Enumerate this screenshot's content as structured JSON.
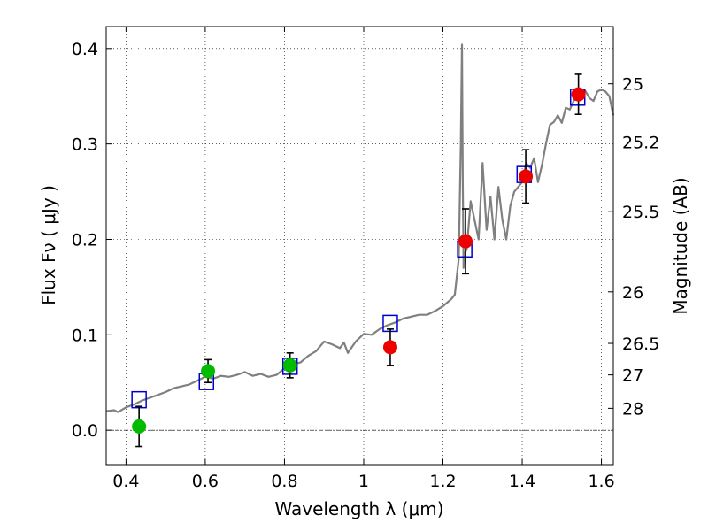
{
  "chart_data": {
    "type": "scatter",
    "title": "",
    "xlabel": "Wavelength  λ (μm)",
    "ylabel": "Flux  Fν  ( μJy )",
    "ylabel_right": "Magnitude (AB)",
    "xlim": [
      0.35,
      1.63
    ],
    "ylim": [
      -0.036,
      0.423
    ],
    "xticks": [
      0.4,
      0.6,
      0.8,
      1.0,
      1.2,
      1.4,
      1.6
    ],
    "xtick_labels": [
      "0.4",
      "0.6",
      "0.8",
      "1",
      "1.2",
      "1.4",
      "1.6"
    ],
    "yticks": [
      0.0,
      0.1,
      0.2,
      0.3,
      0.4
    ],
    "ytick_labels": [
      "0.0",
      "0.1",
      "0.2",
      "0.3",
      "0.4"
    ],
    "right_ticks": [
      {
        "label": "25",
        "flux": 0.363
      },
      {
        "label": "25.2",
        "flux": 0.302
      },
      {
        "label": "25.5",
        "flux": 0.229
      },
      {
        "label": "26",
        "flux": 0.145
      },
      {
        "label": "26.5",
        "flux": 0.091
      },
      {
        "label": "27",
        "flux": 0.058
      },
      {
        "label": "28",
        "flux": 0.023
      }
    ],
    "grid": true,
    "zero_line": true,
    "colors": {
      "model": "#808080",
      "model_points": "#0000cc",
      "green": "#00bb00",
      "red": "#ee0000",
      "errorbar": "#000000"
    },
    "series": [
      {
        "name": "model_spectrum",
        "style": "line",
        "x": [
          0.35,
          0.37,
          0.38,
          0.4,
          0.42,
          0.44,
          0.46,
          0.48,
          0.5,
          0.52,
          0.54,
          0.56,
          0.58,
          0.6,
          0.62,
          0.64,
          0.66,
          0.68,
          0.7,
          0.72,
          0.74,
          0.76,
          0.78,
          0.8,
          0.82,
          0.84,
          0.86,
          0.88,
          0.9,
          0.92,
          0.94,
          0.95,
          0.96,
          0.98,
          1.0,
          1.02,
          1.04,
          1.06,
          1.08,
          1.1,
          1.12,
          1.14,
          1.16,
          1.18,
          1.2,
          1.22,
          1.23,
          1.24,
          1.245,
          1.248,
          1.25,
          1.252,
          1.255,
          1.26,
          1.27,
          1.28,
          1.29,
          1.3,
          1.31,
          1.32,
          1.33,
          1.34,
          1.35,
          1.36,
          1.37,
          1.38,
          1.39,
          1.4,
          1.41,
          1.42,
          1.43,
          1.44,
          1.45,
          1.46,
          1.47,
          1.48,
          1.49,
          1.5,
          1.51,
          1.52,
          1.53,
          1.54,
          1.55,
          1.56,
          1.57,
          1.58,
          1.59,
          1.6,
          1.61,
          1.62,
          1.63
        ],
        "y": [
          0.02,
          0.021,
          0.019,
          0.024,
          0.027,
          0.031,
          0.034,
          0.037,
          0.04,
          0.044,
          0.046,
          0.048,
          0.052,
          0.056,
          0.054,
          0.057,
          0.056,
          0.058,
          0.061,
          0.057,
          0.059,
          0.056,
          0.058,
          0.065,
          0.069,
          0.071,
          0.078,
          0.083,
          0.093,
          0.09,
          0.086,
          0.092,
          0.081,
          0.093,
          0.101,
          0.1,
          0.106,
          0.11,
          0.113,
          0.117,
          0.119,
          0.121,
          0.121,
          0.125,
          0.13,
          0.137,
          0.142,
          0.18,
          0.3,
          0.404,
          0.26,
          0.17,
          0.185,
          0.19,
          0.24,
          0.22,
          0.2,
          0.28,
          0.21,
          0.245,
          0.2,
          0.255,
          0.22,
          0.2,
          0.235,
          0.25,
          0.255,
          0.26,
          0.28,
          0.275,
          0.285,
          0.26,
          0.278,
          0.3,
          0.32,
          0.323,
          0.33,
          0.322,
          0.338,
          0.336,
          0.345,
          0.35,
          0.352,
          0.355,
          0.348,
          0.345,
          0.355,
          0.357,
          0.355,
          0.35,
          0.33
        ]
      },
      {
        "name": "model_bandpass",
        "style": "open_square",
        "x": [
          0.433,
          0.603,
          0.814,
          1.067,
          1.255,
          1.405,
          1.54
        ],
        "y": [
          0.032,
          0.051,
          0.067,
          0.112,
          0.19,
          0.268,
          0.349
        ]
      },
      {
        "name": "observed_green",
        "style": "filled_circle",
        "x": [
          0.433,
          0.607,
          0.814
        ],
        "y": [
          0.004,
          0.062,
          0.068
        ],
        "err": [
          0.021,
          0.012,
          0.013
        ]
      },
      {
        "name": "observed_red",
        "style": "filled_circle",
        "x": [
          1.067,
          1.257,
          1.409,
          1.542
        ],
        "y": [
          0.087,
          0.198,
          0.266,
          0.352
        ],
        "err": [
          0.019,
          0.034,
          0.028,
          0.021
        ]
      }
    ]
  }
}
